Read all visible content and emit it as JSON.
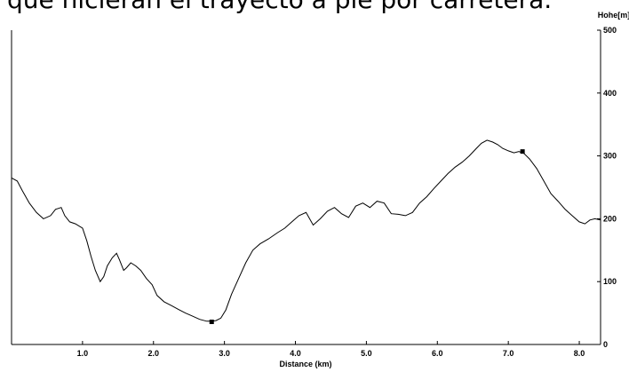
{
  "caption": "que hicieran el trayecto a pie por carretera.",
  "chart_data": {
    "type": "line",
    "xlabel": "Distance (km)",
    "ylabel": "Hohe[m]",
    "xlim": [
      0,
      8.3
    ],
    "ylim": [
      0,
      500
    ],
    "x_ticks": [
      "1.0",
      "2.0",
      "3.0",
      "4.0",
      "5.0",
      "6.0",
      "7.0",
      "8.0"
    ],
    "y_ticks": [
      "0",
      "100",
      "200",
      "300",
      "400",
      "500"
    ],
    "grid": false,
    "line_color": "#000000",
    "series": [
      {
        "x": [
          0.0,
          0.08,
          0.15,
          0.25,
          0.35,
          0.45,
          0.55,
          0.62,
          0.7,
          0.75,
          0.82,
          0.9,
          1.0,
          1.06,
          1.12,
          1.18,
          1.25,
          1.3,
          1.35,
          1.42,
          1.48,
          1.52,
          1.58,
          1.62,
          1.68,
          1.75,
          1.82,
          1.9,
          1.98,
          2.05,
          2.15,
          2.25,
          2.35,
          2.45,
          2.55,
          2.65,
          2.75,
          2.82,
          2.88,
          2.95,
          3.02,
          3.1,
          3.2,
          3.3,
          3.4,
          3.5,
          3.62,
          3.75,
          3.85,
          3.95,
          4.05,
          4.15,
          4.25,
          4.35,
          4.45,
          4.55,
          4.65,
          4.75,
          4.85,
          4.95,
          5.05,
          5.15,
          5.25,
          5.35,
          5.45,
          5.55,
          5.65,
          5.75,
          5.85,
          5.95,
          6.05,
          6.15,
          6.25,
          6.35,
          6.45,
          6.55,
          6.62,
          6.7,
          6.78,
          6.85,
          6.92,
          7.0,
          7.08,
          7.15,
          7.22,
          7.3,
          7.4,
          7.5,
          7.6,
          7.7,
          7.8,
          7.9,
          8.0,
          8.08,
          8.15,
          8.22,
          8.3
        ],
        "values": [
          265,
          260,
          245,
          225,
          210,
          200,
          205,
          215,
          218,
          205,
          195,
          192,
          185,
          165,
          140,
          118,
          100,
          108,
          125,
          138,
          145,
          135,
          118,
          122,
          130,
          125,
          118,
          105,
          95,
          78,
          68,
          62,
          56,
          50,
          45,
          40,
          37,
          37,
          38,
          42,
          55,
          80,
          105,
          130,
          150,
          160,
          168,
          178,
          185,
          195,
          205,
          210,
          190,
          200,
          212,
          218,
          208,
          202,
          220,
          225,
          218,
          228,
          225,
          208,
          207,
          205,
          210,
          225,
          235,
          248,
          260,
          272,
          282,
          290,
          300,
          312,
          320,
          325,
          322,
          318,
          312,
          308,
          305,
          307,
          304,
          295,
          280,
          260,
          240,
          228,
          215,
          205,
          195,
          192,
          198,
          200,
          198
        ]
      }
    ],
    "markers": [
      {
        "x": 2.82,
        "y": 36
      },
      {
        "x": 7.2,
        "y": 307
      }
    ]
  }
}
